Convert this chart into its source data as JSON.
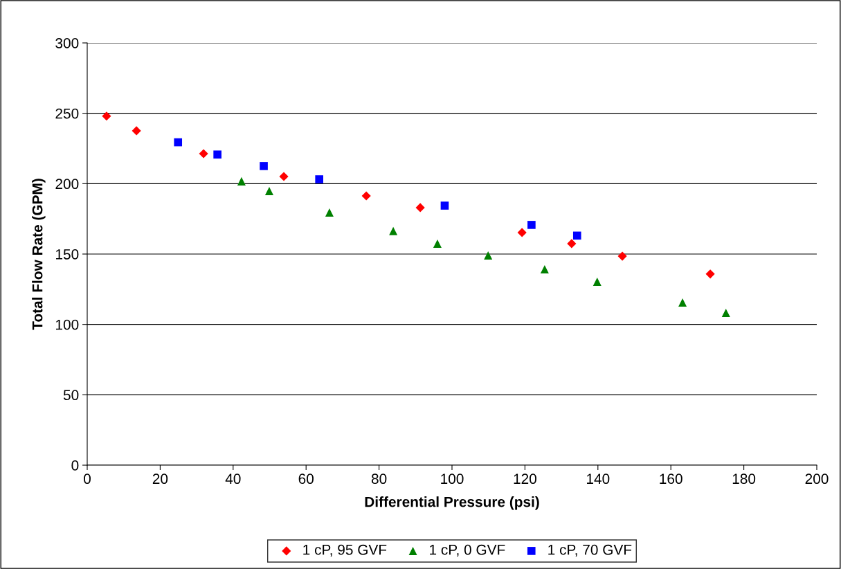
{
  "chart_data": {
    "type": "scatter",
    "xlabel": "Differential Pressure (psi)",
    "ylabel": "Total Flow Rate (GPM)",
    "xlim": [
      0,
      200
    ],
    "xticks": [
      0,
      20,
      40,
      60,
      80,
      100,
      120,
      140,
      160,
      180,
      200
    ],
    "ylim": [
      0,
      300
    ],
    "yticks": [
      0,
      50,
      100,
      150,
      200,
      250,
      300
    ],
    "grid": "y",
    "legend": "bottom",
    "series": [
      {
        "name": "1 cP, 95 GVF",
        "color": "#ff0000",
        "marker": "diamond",
        "x": [
          5.3,
          13.5,
          31.9,
          53.9,
          76.5,
          91.3,
          119.2,
          132.8,
          146.7,
          170.8
        ],
        "values": [
          248,
          237.6,
          221.3,
          205.1,
          191.3,
          183,
          165.3,
          157.4,
          148.5,
          135.8
        ]
      },
      {
        "name": "1 cP, 0 GVF",
        "color": "#008000",
        "marker": "triangle",
        "x": [
          42.3,
          49.9,
          66.4,
          83.9,
          96,
          109.9,
          125.4,
          139.8,
          163.2,
          175.1
        ],
        "values": [
          201.7,
          194.8,
          179.5,
          166.3,
          157.4,
          149,
          139.2,
          130.3,
          115.6,
          108.2
        ]
      },
      {
        "name": "1 cP, 70 GVF",
        "color": "#0000ff",
        "marker": "square",
        "x": [
          24.9,
          35.7,
          48.4,
          63.6,
          98,
          121.8,
          134.3
        ],
        "values": [
          229.4,
          220.7,
          212.5,
          203.1,
          184.4,
          170.7,
          163.1
        ]
      }
    ]
  }
}
